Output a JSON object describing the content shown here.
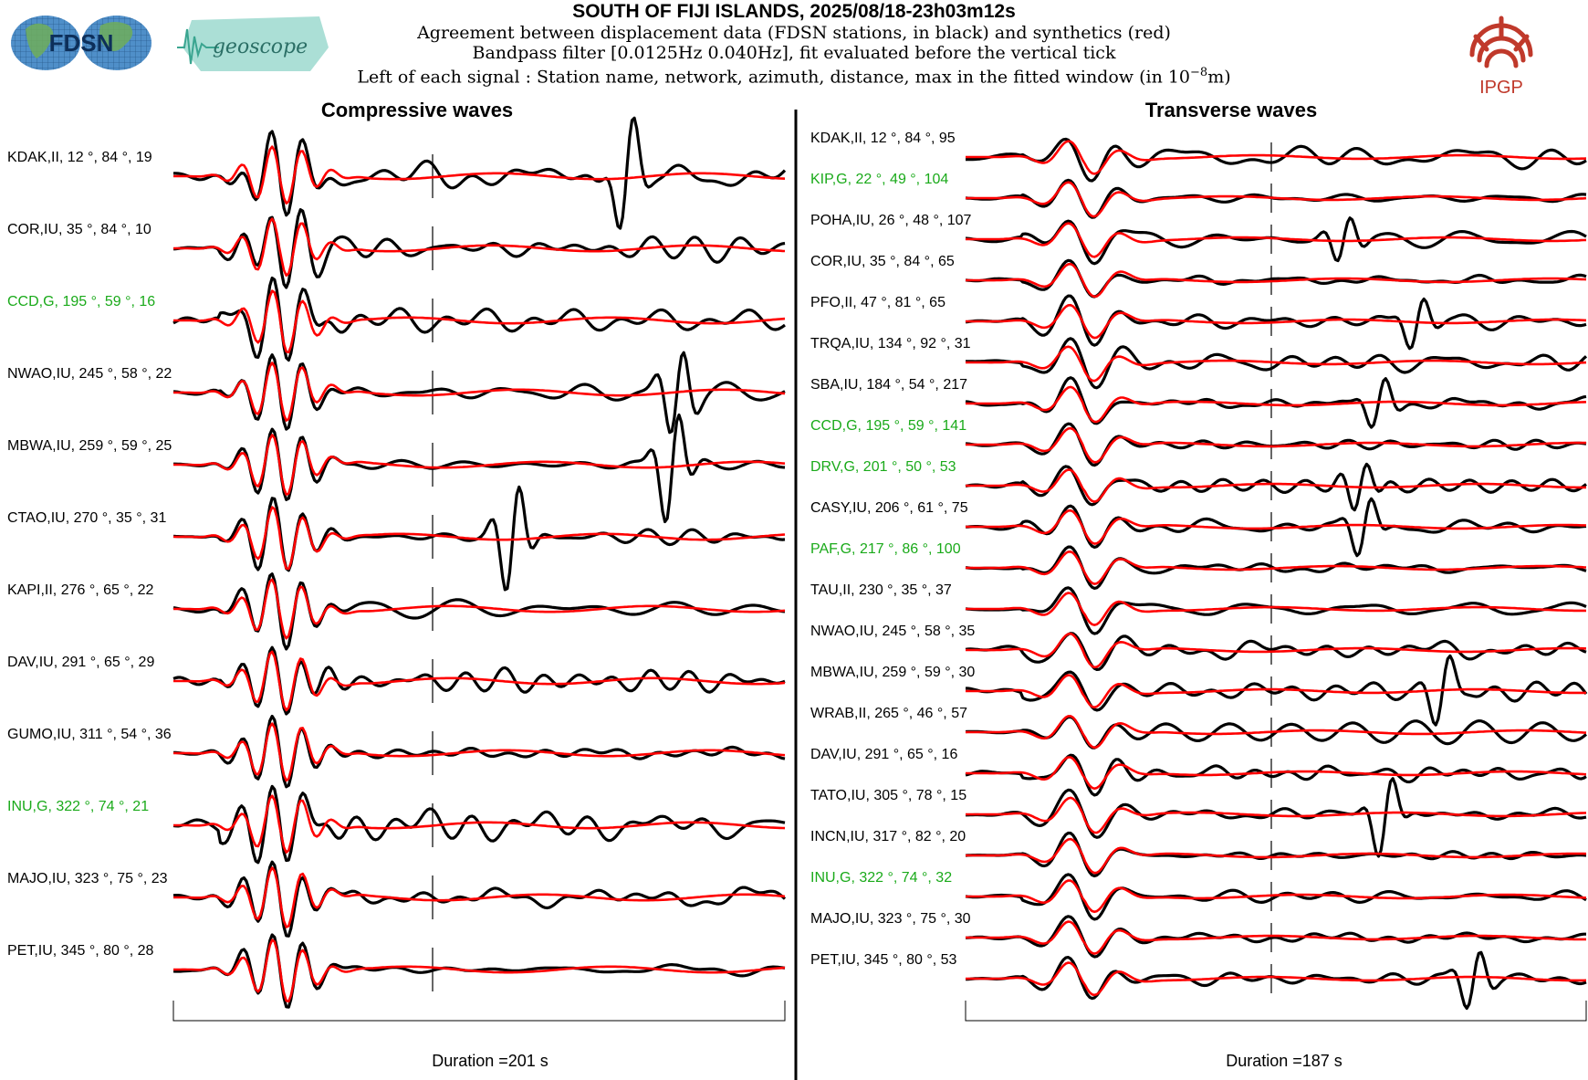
{
  "header": {
    "title": "SOUTH OF FIJI ISLANDS, 2025/08/18-23h03m12s",
    "line1": "Agreement between displacement data (FDSN stations, in black) and synthetics (red)",
    "line2": "Bandpass filter [0.0125Hz 0.040Hz], fit evaluated before the vertical tick",
    "line3_prefix": "Left of each signal : Station name, network, azimuth, distance, max in the fitted window (in 10",
    "line3_exp": "−8",
    "line3_suffix": "m)",
    "logos": {
      "fdsn_text": "FDSN",
      "geoscope_text": "geoscope",
      "ipgp_text": "IPGP"
    }
  },
  "colors": {
    "data": "#000000",
    "synthetic": "#ff0000",
    "highlight_station": "#1aaa1a",
    "normal_station": "#000000",
    "ipgp": "#c0392b"
  },
  "chart_data": [
    {
      "type": "line",
      "title": "Compressive waves",
      "duration_label": "Duration =201 s",
      "duration_seconds": 201,
      "series_legend": {
        "data": "black",
        "synthetics": "red"
      },
      "stations": [
        {
          "label": "KDAK,II, 12 °, 84 °, 19",
          "name": "KDAK",
          "network": "II",
          "azimuth": 12,
          "distance": 84,
          "max": 19,
          "highlight": false
        },
        {
          "label": "COR,IU, 35 °, 84 °, 10",
          "name": "COR",
          "network": "IU",
          "azimuth": 35,
          "distance": 84,
          "max": 10,
          "highlight": false
        },
        {
          "label": "CCD,G, 195 °, 59 °, 16",
          "name": "CCD",
          "network": "G",
          "azimuth": 195,
          "distance": 59,
          "max": 16,
          "highlight": true
        },
        {
          "label": "NWAO,IU, 245 °, 58 °, 22",
          "name": "NWAO",
          "network": "IU",
          "azimuth": 245,
          "distance": 58,
          "max": 22,
          "highlight": false
        },
        {
          "label": "MBWA,IU, 259 °, 59 °, 25",
          "name": "MBWA",
          "network": "IU",
          "azimuth": 259,
          "distance": 59,
          "max": 25,
          "highlight": false
        },
        {
          "label": "CTAO,IU, 270 °, 35 °, 31",
          "name": "CTAO",
          "network": "IU",
          "azimuth": 270,
          "distance": 35,
          "max": 31,
          "highlight": false
        },
        {
          "label": "KAPI,II, 276 °, 65 °, 22",
          "name": "KAPI",
          "network": "II",
          "azimuth": 276,
          "distance": 65,
          "max": 22,
          "highlight": false
        },
        {
          "label": "DAV,IU, 291 °, 65 °, 29",
          "name": "DAV",
          "network": "IU",
          "azimuth": 291,
          "distance": 65,
          "max": 29,
          "highlight": false
        },
        {
          "label": "GUMO,IU, 311 °, 54 °, 36",
          "name": "GUMO",
          "network": "IU",
          "azimuth": 311,
          "distance": 54,
          "max": 36,
          "highlight": false
        },
        {
          "label": "INU,G, 322 °, 74 °, 21",
          "name": "INU",
          "network": "G",
          "azimuth": 322,
          "distance": 74,
          "max": 21,
          "highlight": true
        },
        {
          "label": "MAJO,IU, 323 °, 75 °, 23",
          "name": "MAJO",
          "network": "IU",
          "azimuth": 323,
          "distance": 75,
          "max": 23,
          "highlight": false
        },
        {
          "label": "PET,IU, 345 °, 80 °, 28",
          "name": "PET",
          "network": "IU",
          "azimuth": 345,
          "distance": 80,
          "max": 28,
          "highlight": false
        }
      ]
    },
    {
      "type": "line",
      "title": "Transverse waves",
      "duration_label": "Duration =187 s",
      "duration_seconds": 187,
      "series_legend": {
        "data": "black",
        "synthetics": "red"
      },
      "stations": [
        {
          "label": "KDAK,II, 12 °, 84 °, 95",
          "name": "KDAK",
          "network": "II",
          "azimuth": 12,
          "distance": 84,
          "max": 95,
          "highlight": false
        },
        {
          "label": "KIP,G, 22 °, 49 °, 104",
          "name": "KIP",
          "network": "G",
          "azimuth": 22,
          "distance": 49,
          "max": 104,
          "highlight": true
        },
        {
          "label": "POHA,IU, 26 °, 48 °, 107",
          "name": "POHA",
          "network": "IU",
          "azimuth": 26,
          "distance": 48,
          "max": 107,
          "highlight": false
        },
        {
          "label": "COR,IU, 35 °, 84 °, 65",
          "name": "COR",
          "network": "IU",
          "azimuth": 35,
          "distance": 84,
          "max": 65,
          "highlight": false
        },
        {
          "label": "PFO,II, 47 °, 81 °, 65",
          "name": "PFO",
          "network": "II",
          "azimuth": 47,
          "distance": 81,
          "max": 65,
          "highlight": false
        },
        {
          "label": "TRQA,IU, 134 °, 92 °, 31",
          "name": "TRQA",
          "network": "IU",
          "azimuth": 134,
          "distance": 92,
          "max": 31,
          "highlight": false
        },
        {
          "label": "SBA,IU, 184 °, 54 °, 217",
          "name": "SBA",
          "network": "IU",
          "azimuth": 184,
          "distance": 54,
          "max": 217,
          "highlight": false
        },
        {
          "label": "CCD,G, 195 °, 59 °, 141",
          "name": "CCD",
          "network": "G",
          "azimuth": 195,
          "distance": 59,
          "max": 141,
          "highlight": true
        },
        {
          "label": "DRV,G, 201 °, 50 °, 53",
          "name": "DRV",
          "network": "G",
          "azimuth": 201,
          "distance": 50,
          "max": 53,
          "highlight": true
        },
        {
          "label": "CASY,IU, 206 °, 61 °, 75",
          "name": "CASY",
          "network": "IU",
          "azimuth": 206,
          "distance": 61,
          "max": 75,
          "highlight": false
        },
        {
          "label": "PAF,G, 217 °, 86 °, 100",
          "name": "PAF",
          "network": "G",
          "azimuth": 217,
          "distance": 86,
          "max": 100,
          "highlight": true
        },
        {
          "label": "TAU,II, 230 °, 35 °, 37",
          "name": "TAU",
          "network": "II",
          "azimuth": 230,
          "distance": 35,
          "max": 37,
          "highlight": false
        },
        {
          "label": "NWAO,IU, 245 °, 58 °, 35",
          "name": "NWAO",
          "network": "IU",
          "azimuth": 245,
          "distance": 58,
          "max": 35,
          "highlight": false
        },
        {
          "label": "MBWA,IU, 259 °, 59 °, 30",
          "name": "MBWA",
          "network": "IU",
          "azimuth": 259,
          "distance": 59,
          "max": 30,
          "highlight": false
        },
        {
          "label": "WRAB,II, 265 °, 46 °, 57",
          "name": "WRAB",
          "network": "II",
          "azimuth": 265,
          "distance": 46,
          "max": 57,
          "highlight": false
        },
        {
          "label": "DAV,IU, 291 °, 65 °, 16",
          "name": "DAV",
          "network": "IU",
          "azimuth": 291,
          "distance": 65,
          "max": 16,
          "highlight": false
        },
        {
          "label": "TATO,IU, 305 °, 78 °, 15",
          "name": "TATO",
          "network": "IU",
          "azimuth": 305,
          "distance": 78,
          "max": 15,
          "highlight": false
        },
        {
          "label": "INCN,IU, 317 °, 82 °, 20",
          "name": "INCN",
          "network": "IU",
          "azimuth": 317,
          "distance": 82,
          "max": 20,
          "highlight": false
        },
        {
          "label": "INU,G, 322 °, 74 °, 32",
          "name": "INU",
          "network": "G",
          "azimuth": 322,
          "distance": 74,
          "max": 32,
          "highlight": true
        },
        {
          "label": "MAJO,IU, 323 °, 75 °, 30",
          "name": "MAJO",
          "network": "IU",
          "azimuth": 323,
          "distance": 75,
          "max": 30,
          "highlight": false
        },
        {
          "label": "PET,IU, 345 °, 80 °, 53",
          "name": "PET",
          "network": "IU",
          "azimuth": 345,
          "distance": 80,
          "max": 53,
          "highlight": false
        }
      ]
    }
  ]
}
